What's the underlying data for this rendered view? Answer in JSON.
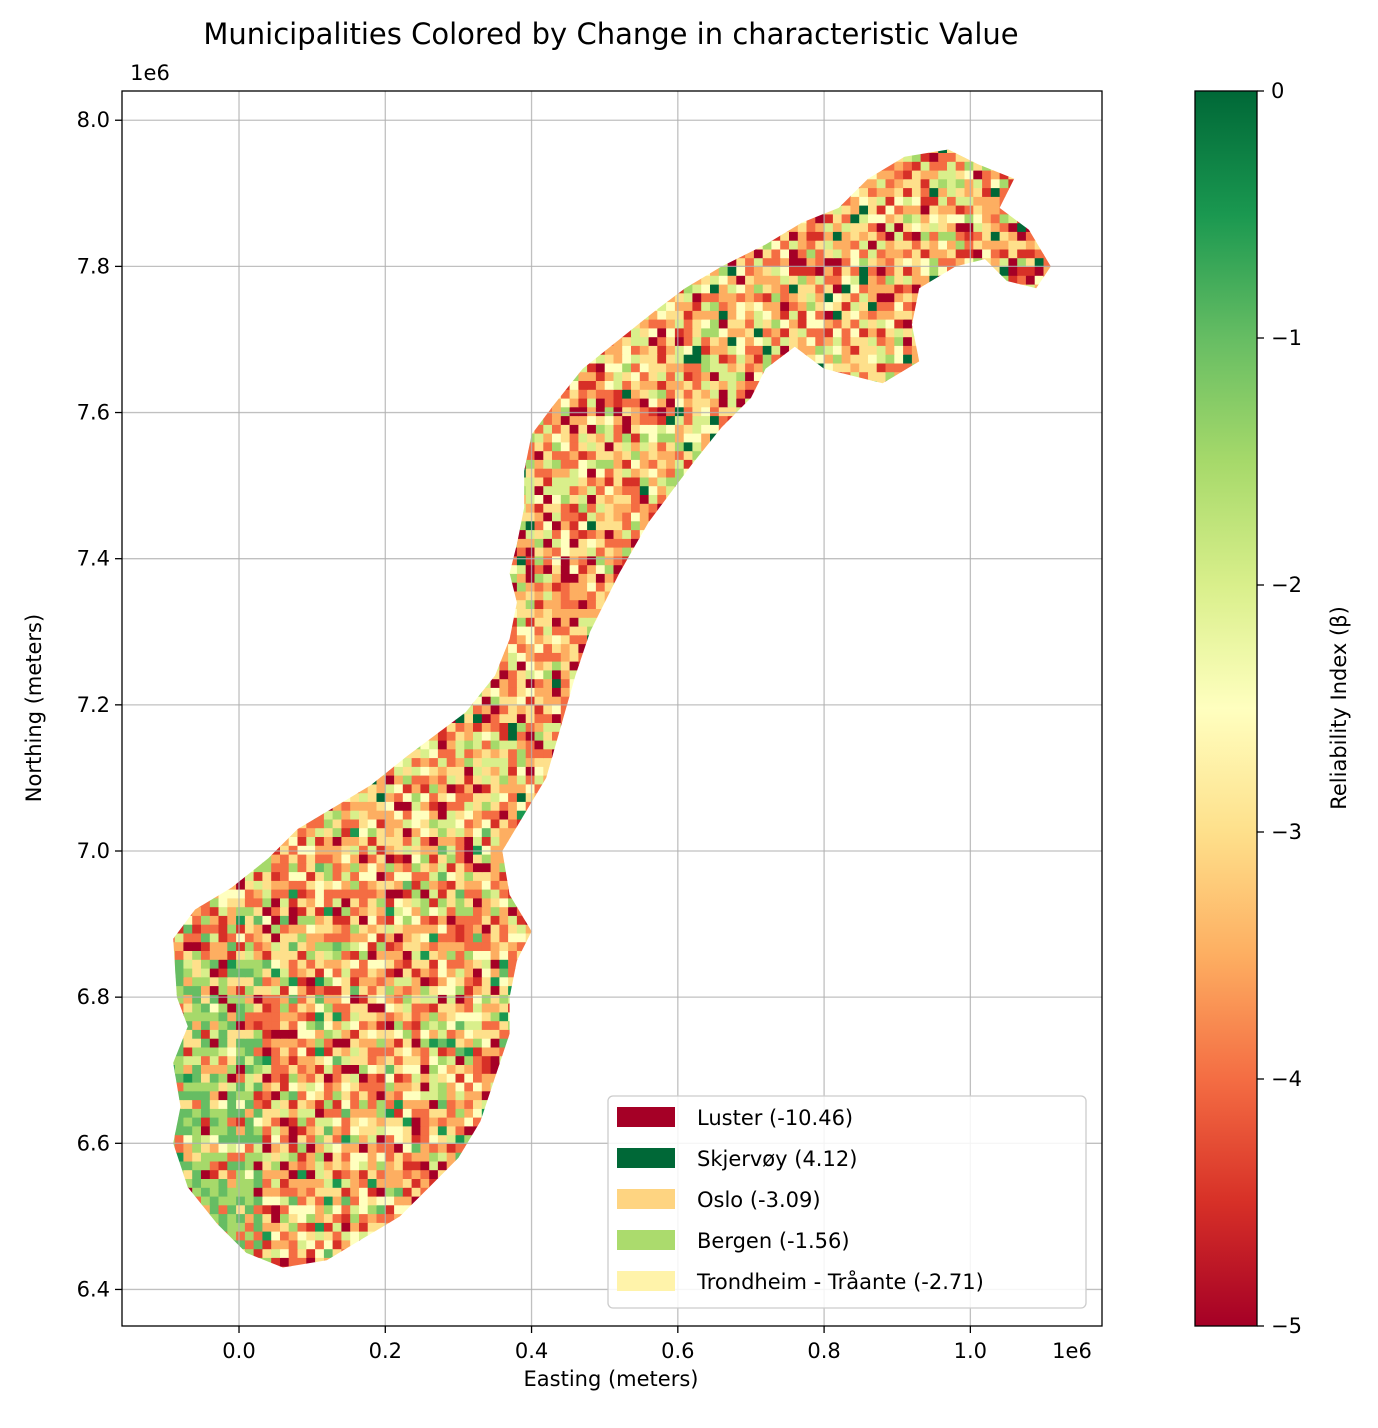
{
  "chart_data": {
    "type": "choropleth map",
    "title": "Municipalities Colored by Change in characteristic Value",
    "xlabel": "Easting (meters)",
    "ylabel": "Northing (meters)",
    "x_offset_label": "1e6",
    "y_offset_label": "1e6",
    "xlim": [
      -0.16,
      1.18
    ],
    "ylim": [
      6.35,
      8.04
    ],
    "x_ticks": [
      0.0,
      0.2,
      0.4,
      0.6,
      0.8,
      1.0
    ],
    "x_tick_labels": [
      "0.0",
      "0.2",
      "0.4",
      "0.6",
      "0.8",
      "1.0"
    ],
    "y_ticks": [
      6.4,
      6.6,
      6.8,
      7.0,
      7.2,
      7.4,
      7.6,
      7.8,
      8.0
    ],
    "y_tick_labels": [
      "6.4",
      "6.6",
      "6.8",
      "7.0",
      "7.2",
      "7.4",
      "7.6",
      "7.8",
      "8.0"
    ],
    "grid": true,
    "colorbar": {
      "label": "Reliability Index (β)",
      "cmap": "RdYlGn",
      "range": [
        -5,
        0
      ],
      "ticks": [
        0,
        -1,
        -2,
        -3,
        -4,
        -5
      ],
      "tick_labels": [
        "0",
        "−1",
        "−2",
        "−3",
        "−4",
        "−5"
      ]
    },
    "legend": {
      "placement": "lower right",
      "entries": [
        {
          "label": "Luster (-10.46)",
          "value": -10.46,
          "color": "#a50026"
        },
        {
          "label": "Skjervøy (4.12)",
          "value": 4.12,
          "color": "#006837"
        },
        {
          "label": "Oslo (-3.09)",
          "value": -3.09,
          "color": "#fed481"
        },
        {
          "label": "Bergen (-1.56)",
          "value": -1.56,
          "color": "#abdb6d"
        },
        {
          "label": "Trondheim - Tråante (-2.71)",
          "value": -2.71,
          "color": "#fff3aa"
        }
      ]
    },
    "palette": [
      "#a50026",
      "#d73027",
      "#f46d43",
      "#fdae61",
      "#fee08b",
      "#ffffbf",
      "#d9ef8b",
      "#a6d96a",
      "#66bd63",
      "#1a9850",
      "#006837"
    ]
  }
}
